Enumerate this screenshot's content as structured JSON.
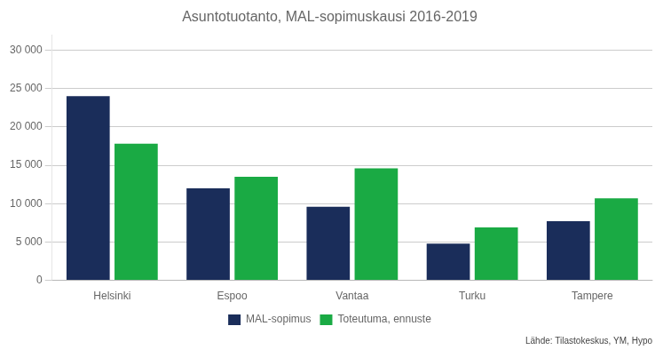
{
  "chart_data": {
    "type": "bar",
    "title": "Asuntotuotanto, MAL-sopimuskausi 2016-2019",
    "categories": [
      "Helsinki",
      "Espoo",
      "Vantaa",
      "Turku",
      "Tampere"
    ],
    "series": [
      {
        "name": "MAL-sopimus",
        "color": "#1a2d5a",
        "values": [
          24000,
          12000,
          9600,
          4800,
          7700
        ]
      },
      {
        "name": "Toteutuma, ennuste",
        "color": "#1aaa44",
        "values": [
          17800,
          13500,
          14600,
          6900,
          10700
        ]
      }
    ],
    "ylim": [
      0,
      32000
    ],
    "yticks": [
      0,
      {
        "value": 5000,
        "label": "5 000"
      },
      {
        "value": 10000,
        "label": "10 000"
      },
      {
        "value": 15000,
        "label": "15 000"
      },
      {
        "value": 20000,
        "label": "20 000"
      },
      {
        "value": 25000,
        "label": "25 000"
      },
      {
        "value": 30000,
        "label": "30 000"
      }
    ],
    "grid": true,
    "legend": "bottom",
    "annotations": [
      "Lähde: Tilastokeskus, YM, Hypo"
    ]
  }
}
